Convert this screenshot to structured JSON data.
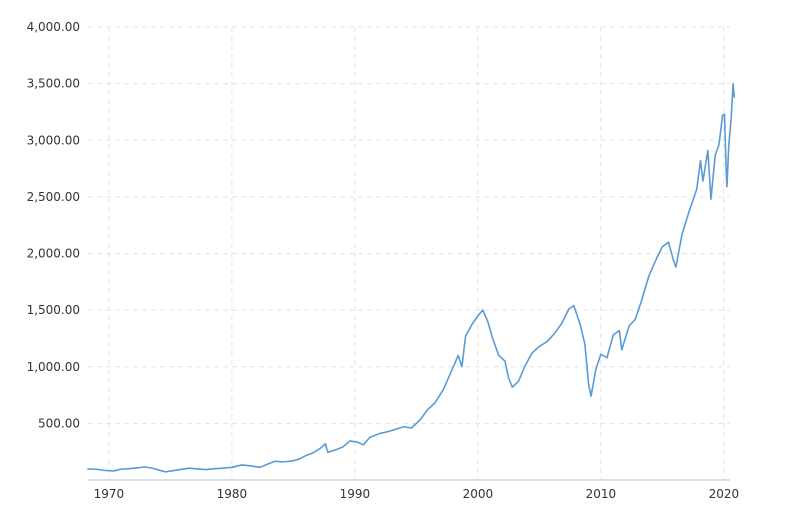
{
  "chart_data": {
    "type": "line",
    "title": "",
    "xlabel": "",
    "ylabel": "",
    "xlim": [
      1968.3,
      2020.5
    ],
    "ylim": [
      0,
      4000
    ],
    "grid": true,
    "line_color": "#5b9bd5",
    "y_ticks": [
      {
        "value": 500,
        "label": "500.00"
      },
      {
        "value": 1000,
        "label": "1,000.00"
      },
      {
        "value": 1500,
        "label": "1,500.00"
      },
      {
        "value": 2000,
        "label": "2,000.00"
      },
      {
        "value": 2500,
        "label": "2,500.00"
      },
      {
        "value": 3000,
        "label": "3,000.00"
      },
      {
        "value": 3500,
        "label": "3,500.00"
      },
      {
        "value": 4000,
        "label": "4,000.00"
      }
    ],
    "x_ticks": [
      {
        "value": 1970,
        "label": "1970"
      },
      {
        "value": 1980,
        "label": "1980"
      },
      {
        "value": 1990,
        "label": "1990"
      },
      {
        "value": 2000,
        "label": "2000"
      },
      {
        "value": 2010,
        "label": "2010"
      },
      {
        "value": 2020,
        "label": "2020"
      }
    ],
    "series": [
      {
        "points": [
          [
            1968.3,
            98
          ],
          [
            1969.0,
            95
          ],
          [
            1969.6,
            85
          ],
          [
            1970.4,
            80
          ],
          [
            1971.0,
            96
          ],
          [
            1971.6,
            100
          ],
          [
            1972.4,
            108
          ],
          [
            1972.9,
            116
          ],
          [
            1973.5,
            105
          ],
          [
            1974.0,
            90
          ],
          [
            1974.6,
            72
          ],
          [
            1975.2,
            82
          ],
          [
            1975.8,
            92
          ],
          [
            1976.5,
            104
          ],
          [
            1977.2,
            98
          ],
          [
            1977.9,
            92
          ],
          [
            1978.6,
            100
          ],
          [
            1979.3,
            104
          ],
          [
            1980.0,
            112
          ],
          [
            1980.8,
            133
          ],
          [
            1981.5,
            125
          ],
          [
            1982.3,
            112
          ],
          [
            1982.9,
            140
          ],
          [
            1983.5,
            165
          ],
          [
            1984.2,
            160
          ],
          [
            1984.9,
            168
          ],
          [
            1985.5,
            186
          ],
          [
            1986.0,
            215
          ],
          [
            1986.6,
            240
          ],
          [
            1987.2,
            280
          ],
          [
            1987.6,
            320
          ],
          [
            1987.8,
            245
          ],
          [
            1988.4,
            265
          ],
          [
            1989.0,
            290
          ],
          [
            1989.6,
            345
          ],
          [
            1990.2,
            335
          ],
          [
            1990.7,
            310
          ],
          [
            1991.2,
            375
          ],
          [
            1992.0,
            410
          ],
          [
            1992.8,
            430
          ],
          [
            1993.5,
            455
          ],
          [
            1994.0,
            470
          ],
          [
            1994.6,
            460
          ],
          [
            1995.3,
            530
          ],
          [
            1995.9,
            620
          ],
          [
            1996.5,
            680
          ],
          [
            1997.2,
            800
          ],
          [
            1997.8,
            950
          ],
          [
            1998.4,
            1100
          ],
          [
            1998.7,
            1000
          ],
          [
            1999.0,
            1270
          ],
          [
            1999.5,
            1370
          ],
          [
            2000.0,
            1450
          ],
          [
            2000.4,
            1500
          ],
          [
            2000.8,
            1400
          ],
          [
            2001.2,
            1250
          ],
          [
            2001.7,
            1100
          ],
          [
            2002.2,
            1050
          ],
          [
            2002.5,
            900
          ],
          [
            2002.8,
            820
          ],
          [
            2003.3,
            870
          ],
          [
            2003.8,
            1000
          ],
          [
            2004.4,
            1120
          ],
          [
            2005.0,
            1180
          ],
          [
            2005.6,
            1220
          ],
          [
            2006.2,
            1290
          ],
          [
            2006.8,
            1380
          ],
          [
            2007.4,
            1510
          ],
          [
            2007.8,
            1540
          ],
          [
            2008.3,
            1380
          ],
          [
            2008.7,
            1200
          ],
          [
            2009.0,
            850
          ],
          [
            2009.2,
            740
          ],
          [
            2009.6,
            980
          ],
          [
            2010.0,
            1110
          ],
          [
            2010.5,
            1080
          ],
          [
            2011.0,
            1280
          ],
          [
            2011.5,
            1320
          ],
          [
            2011.7,
            1150
          ],
          [
            2012.3,
            1360
          ],
          [
            2012.8,
            1420
          ],
          [
            2013.3,
            1580
          ],
          [
            2013.9,
            1800
          ],
          [
            2014.5,
            1950
          ],
          [
            2015.0,
            2060
          ],
          [
            2015.5,
            2100
          ],
          [
            2015.9,
            1940
          ],
          [
            2016.1,
            1880
          ],
          [
            2016.6,
            2170
          ],
          [
            2017.2,
            2380
          ],
          [
            2017.8,
            2570
          ],
          [
            2018.1,
            2820
          ],
          [
            2018.3,
            2640
          ],
          [
            2018.7,
            2910
          ],
          [
            2018.95,
            2480
          ],
          [
            2019.3,
            2870
          ],
          [
            2019.6,
            2960
          ],
          [
            2019.9,
            3220
          ],
          [
            2020.05,
            3230
          ],
          [
            2020.2,
            2700
          ],
          [
            2020.25,
            2590
          ],
          [
            2020.4,
            2950
          ],
          [
            2020.6,
            3200
          ],
          [
            2020.75,
            3500
          ],
          [
            2020.85,
            3380
          ]
        ]
      }
    ]
  }
}
